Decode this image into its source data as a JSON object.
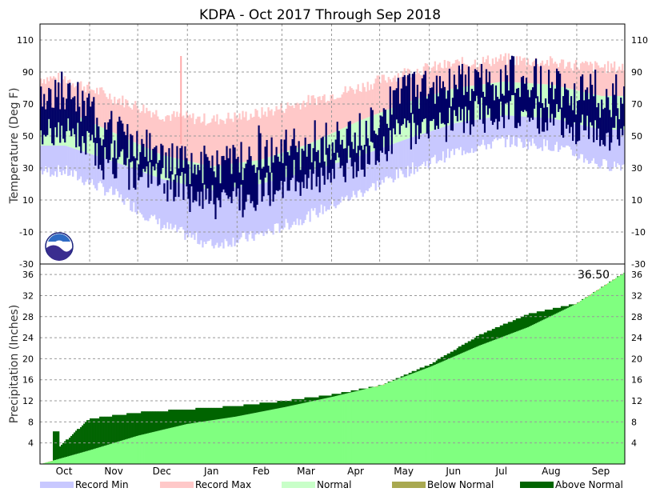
{
  "chart_data": {
    "type": "area",
    "title": "KDPA - Oct 2017 Through Sep 2018",
    "months": [
      "Oct",
      "Nov",
      "Dec",
      "Jan",
      "Feb",
      "Mar",
      "Apr",
      "May",
      "Jun",
      "Jul",
      "Aug",
      "Sep"
    ],
    "legend": [
      {
        "label": "Record Min",
        "color": "#c8c8ff"
      },
      {
        "label": "Record Max",
        "color": "#ffc8c8"
      },
      {
        "label": "Normal",
        "color": "#c8ffc8"
      },
      {
        "label": "Below Normal",
        "color": "#a8a850"
      },
      {
        "label": "Above Normal",
        "color": "#006400"
      }
    ],
    "temperature": {
      "ylabel": "Temperature (Deg F)",
      "ylim": [
        -30,
        120
      ],
      "ticks": [
        "110",
        "90",
        "70",
        "50",
        "30",
        "10",
        "-10",
        "-30"
      ],
      "tick_values": [
        110,
        90,
        70,
        50,
        30,
        10,
        -10,
        -30
      ],
      "monthly_record_max": [
        86,
        74,
        63,
        60,
        64,
        72,
        80,
        90,
        95,
        98,
        96,
        93
      ],
      "monthly_normal_high": [
        66,
        52,
        38,
        31,
        35,
        45,
        59,
        71,
        80,
        84,
        82,
        75
      ],
      "monthly_normal_low": [
        44,
        34,
        23,
        16,
        20,
        28,
        37,
        48,
        58,
        63,
        61,
        54
      ],
      "monthly_record_min": [
        28,
        14,
        -6,
        -18,
        -12,
        0,
        14,
        28,
        40,
        47,
        44,
        32
      ],
      "observed_monthly_high": [
        76,
        52,
        36,
        30,
        42,
        44,
        50,
        80,
        82,
        86,
        82,
        76
      ],
      "observed_monthly_low": [
        52,
        32,
        22,
        8,
        16,
        24,
        34,
        54,
        60,
        66,
        62,
        52
      ],
      "peak_annotation": "~100 (spike in late Dec)"
    },
    "precipitation": {
      "ylabel": "Precipitation (Inches)",
      "ylim": [
        0,
        38
      ],
      "ticks": [
        "36",
        "32",
        "28",
        "24",
        "20",
        "16",
        "12",
        "8",
        "4"
      ],
      "tick_values": [
        36,
        32,
        28,
        24,
        20,
        16,
        12,
        8,
        4
      ],
      "total_label": "36.50",
      "normal_cumulative_month_end": [
        2.6,
        5.4,
        7.6,
        9.0,
        10.8,
        12.8,
        15.0,
        18.5,
        22.5,
        26.0,
        30.5,
        36.5
      ],
      "observed_cumulative_month_end": [
        8.6,
        9.8,
        10.4,
        11.0,
        12.0,
        13.2,
        15.0,
        19.0,
        24.5,
        28.5,
        30.5,
        36.5
      ]
    }
  }
}
